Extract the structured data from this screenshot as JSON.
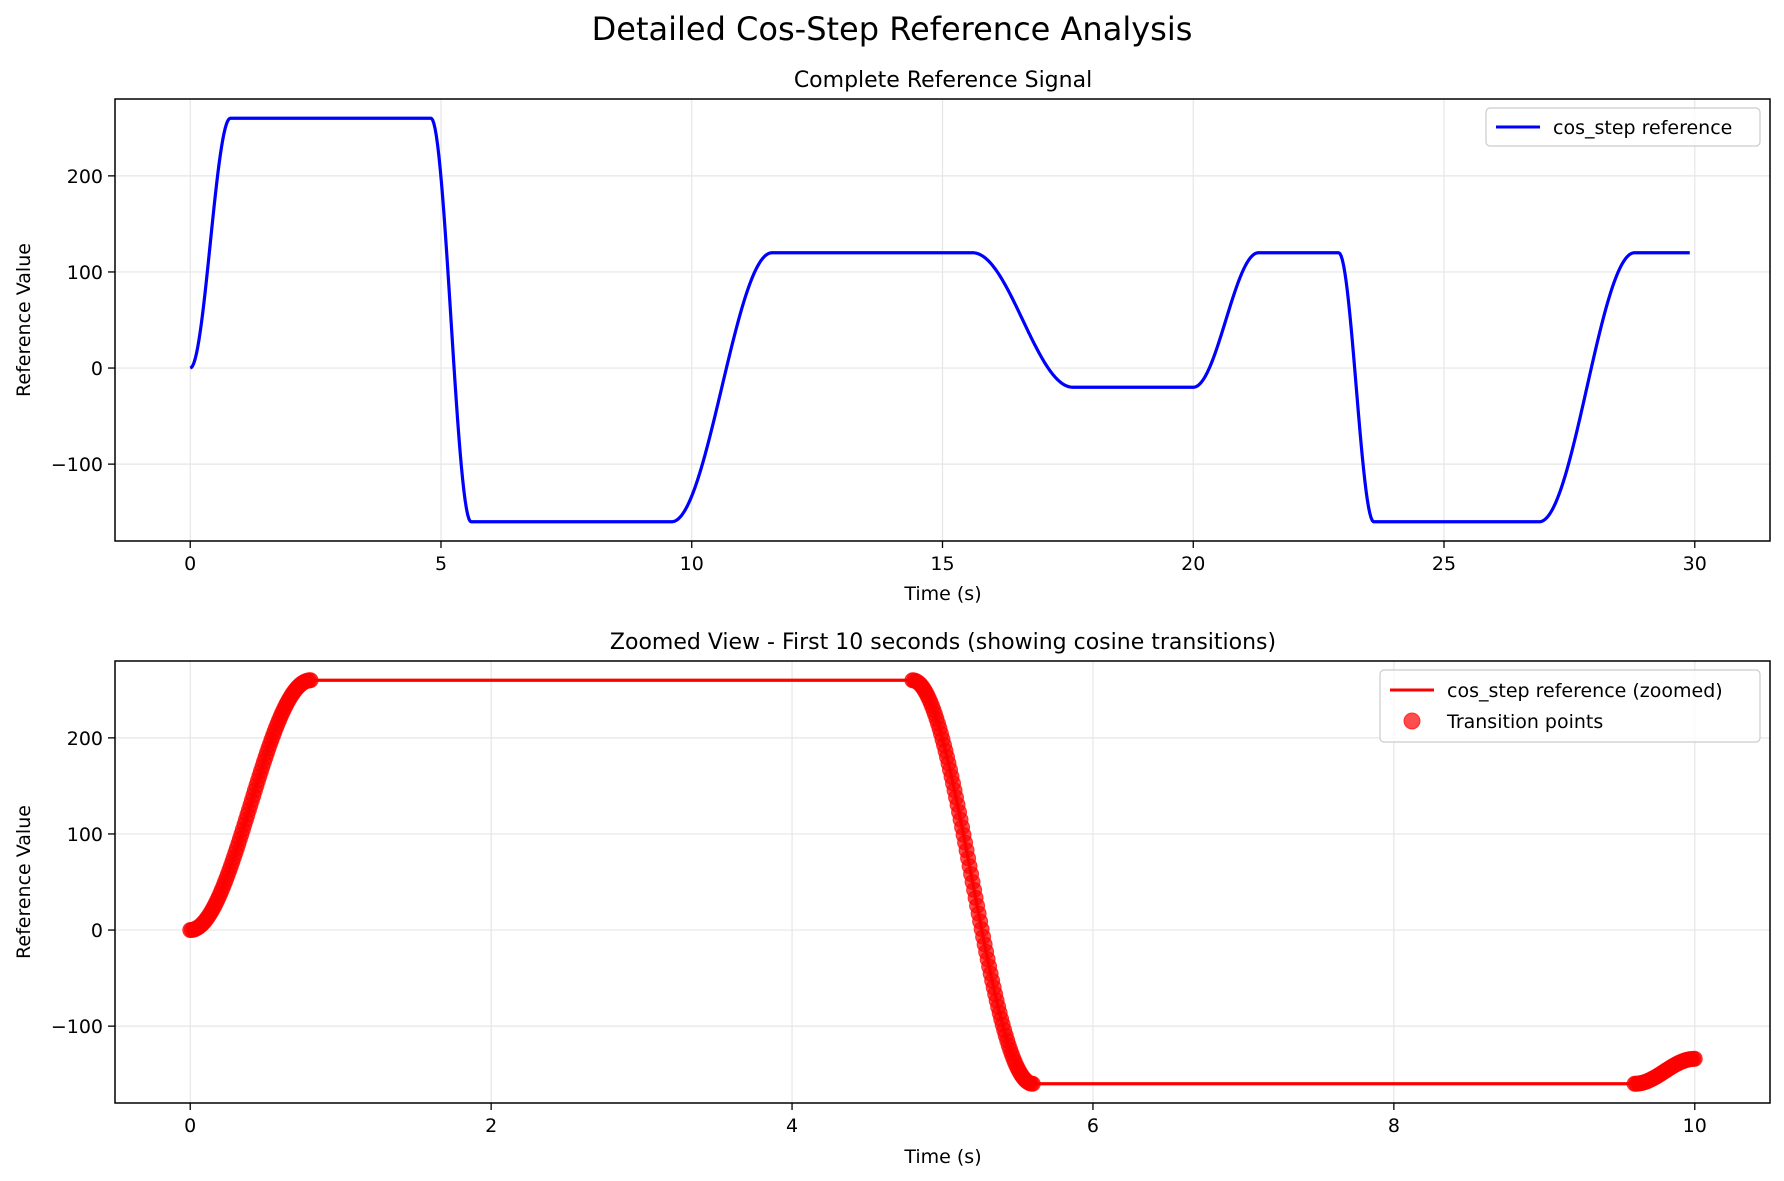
{
  "figure": {
    "suptitle": "Detailed Cos-Step Reference Analysis"
  },
  "chart_data": [
    {
      "type": "line",
      "title": "Complete Reference Signal",
      "xlabel": "Time (s)",
      "ylabel": "Reference Value",
      "xlim": [
        -1.5,
        31.5
      ],
      "ylim": [
        -180,
        280
      ],
      "xticks": [
        0,
        5,
        10,
        15,
        20,
        25,
        30
      ],
      "yticks": [
        -100,
        0,
        100,
        200
      ],
      "ytick_labels": [
        "−100",
        "0",
        "100",
        "200"
      ],
      "grid": true,
      "legend_position": "upper right",
      "segments": [
        {
          "t0": 0.0,
          "t1": 0.8,
          "from": 0,
          "to": 260
        },
        {
          "t0": 0.8,
          "t1": 4.8,
          "from": 260,
          "to": 260
        },
        {
          "t0": 4.8,
          "t1": 5.6,
          "from": 260,
          "to": -160
        },
        {
          "t0": 5.6,
          "t1": 9.6,
          "from": -160,
          "to": -160
        },
        {
          "t0": 9.6,
          "t1": 11.6,
          "from": -160,
          "to": 120
        },
        {
          "t0": 11.6,
          "t1": 15.6,
          "from": 120,
          "to": 120
        },
        {
          "t0": 15.6,
          "t1": 17.6,
          "from": 120,
          "to": -20
        },
        {
          "t0": 17.6,
          "t1": 20.0,
          "from": -20,
          "to": -20
        },
        {
          "t0": 20.0,
          "t1": 21.3,
          "from": -20,
          "to": 120
        },
        {
          "t0": 21.3,
          "t1": 22.9,
          "from": 120,
          "to": 120
        },
        {
          "t0": 22.9,
          "t1": 23.6,
          "from": 120,
          "to": -160
        },
        {
          "t0": 23.6,
          "t1": 26.9,
          "from": -160,
          "to": -160
        },
        {
          "t0": 26.9,
          "t1": 28.8,
          "from": -160,
          "to": 120
        },
        {
          "t0": 28.8,
          "t1": 29.9,
          "from": 120,
          "to": 120
        }
      ],
      "series": [
        {
          "name": "cos_step reference",
          "color": "#0000ff",
          "kind": "line"
        }
      ]
    },
    {
      "type": "line",
      "title": "Zoomed View - First 10 seconds (showing cosine transitions)",
      "xlabel": "Time (s)",
      "ylabel": "Reference Value",
      "xlim": [
        -0.5,
        10.5
      ],
      "ylim": [
        -180,
        280
      ],
      "xticks": [
        0,
        2,
        4,
        6,
        8,
        10
      ],
      "yticks": [
        -100,
        0,
        100,
        200
      ],
      "ytick_labels": [
        "−100",
        "0",
        "100",
        "200"
      ],
      "grid": true,
      "legend_position": "upper right",
      "segments": [
        {
          "t0": 0.0,
          "t1": 0.8,
          "from": 0,
          "to": 260
        },
        {
          "t0": 0.8,
          "t1": 4.8,
          "from": 260,
          "to": 260
        },
        {
          "t0": 4.8,
          "t1": 5.6,
          "from": 260,
          "to": -160
        },
        {
          "t0": 5.6,
          "t1": 9.6,
          "from": -160,
          "to": -160
        },
        {
          "t0": 9.6,
          "t1": 10.0,
          "from": -160,
          "to": -134
        }
      ],
      "transition_windows": [
        {
          "t0": 0.0,
          "t1": 0.8
        },
        {
          "t0": 4.8,
          "t1": 5.6
        },
        {
          "t0": 9.6,
          "t1": 10.0
        }
      ],
      "series": [
        {
          "name": "cos_step reference (zoomed)",
          "color": "#ff0000",
          "kind": "line"
        },
        {
          "name": "Transition points",
          "color": "#ff0000",
          "kind": "scatter"
        }
      ]
    }
  ]
}
